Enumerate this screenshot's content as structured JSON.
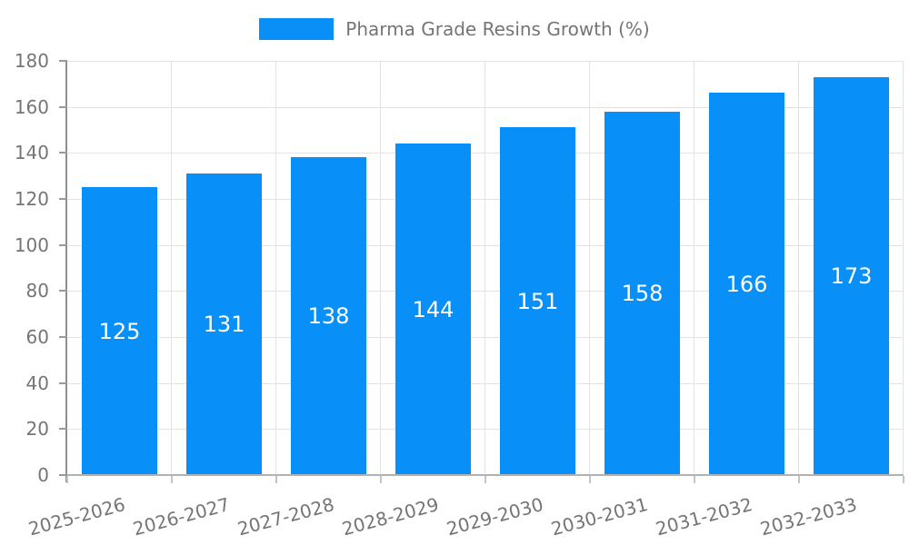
{
  "legend": {
    "label": "Pharma Grade Resins Growth (%)"
  },
  "chart_data": {
    "type": "bar",
    "title": "Pharma Grade Resins Growth (%)",
    "categories": [
      "2025-2026",
      "2026-2027",
      "2027-2028",
      "2028-2029",
      "2029-2030",
      "2030-2031",
      "2031-2032",
      "2032-2033"
    ],
    "values": [
      125,
      131,
      138,
      144,
      151,
      158,
      166,
      173
    ],
    "value_labels": [
      "125",
      "131",
      "138",
      "144",
      "151",
      "158",
      "166",
      "173"
    ],
    "xlabel": "",
    "ylabel": "",
    "ylim": [
      0,
      180
    ],
    "ytick_interval": 20,
    "yticks": [
      0,
      20,
      40,
      60,
      80,
      100,
      120,
      140,
      160,
      180
    ],
    "grid": true,
    "legend_position": "top",
    "x_label_rotation_deg": -15,
    "colors": {
      "bar": "#0890f8",
      "value_label": "#ffffff",
      "axis_text": "#757575",
      "grid_line": "#e3e3e3",
      "y_axis_line": "#8f8f8f",
      "x_axis_line": "#b2b2b2"
    }
  }
}
